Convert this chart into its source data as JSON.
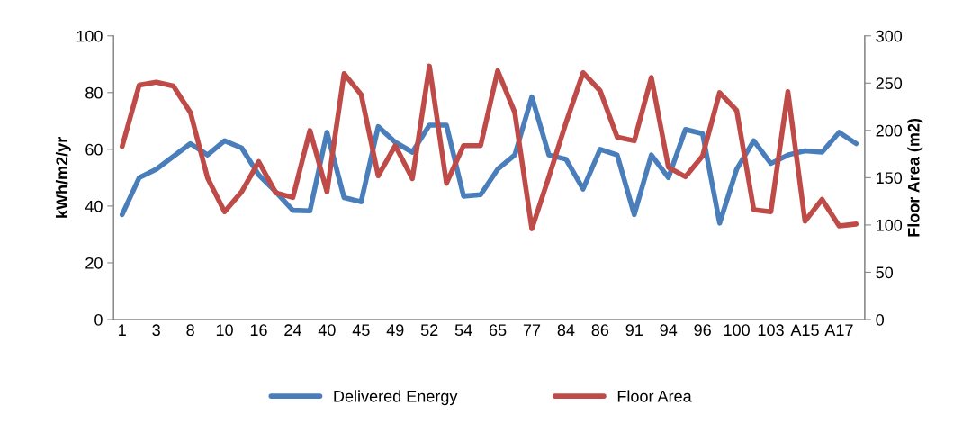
{
  "chart_data": {
    "type": "line",
    "categories": [
      "1",
      null,
      "3",
      null,
      "8",
      null,
      "10",
      null,
      "16",
      null,
      "24",
      null,
      "40",
      null,
      "45",
      null,
      "49",
      null,
      "52",
      null,
      "54",
      null,
      "65",
      null,
      "77",
      null,
      "84",
      null,
      "86",
      null,
      "91",
      null,
      "94",
      null,
      "96",
      null,
      "100",
      null,
      "103",
      null,
      "A15",
      null,
      "A17",
      null
    ],
    "series": [
      {
        "name": "Delivered Energy",
        "color": "#4a7ebb",
        "values": [
          37,
          50,
          53,
          57.5,
          62,
          58,
          63,
          60.5,
          51,
          45,
          38.5,
          38.3,
          66,
          43,
          41.5,
          68,
          62.5,
          59,
          68.5,
          68.5,
          43.5,
          44,
          53,
          58,
          78.5,
          58,
          56.5,
          46,
          60,
          58,
          37,
          58,
          50,
          67,
          65.5,
          34,
          53,
          63,
          55,
          58,
          59.5,
          59,
          66,
          62
        ]
      },
      {
        "name": "Floor Area",
        "color": "#be4b48",
        "axis": "y2",
        "values": [
          183,
          248,
          251,
          247,
          219,
          150,
          114,
          135,
          167,
          134,
          129,
          200,
          135,
          260,
          238,
          152,
          184,
          149,
          268,
          144,
          184,
          184,
          263,
          219,
          96,
          151,
          208,
          261,
          242,
          193,
          189,
          256,
          161,
          151,
          173,
          240,
          221,
          116,
          114,
          241,
          104,
          127,
          99,
          101
        ]
      }
    ],
    "ylabel": "kWh/m2/yr",
    "y2label": "Floor Area (m2)",
    "ylim": [
      0,
      100
    ],
    "yticks": [
      0,
      20,
      40,
      60,
      80,
      100
    ],
    "y2lim": [
      0,
      300
    ],
    "y2ticks": [
      0,
      50,
      100,
      150,
      200,
      250,
      300
    ],
    "legend": "bottom",
    "grid": false,
    "marker": "none",
    "line_style": "solid"
  }
}
